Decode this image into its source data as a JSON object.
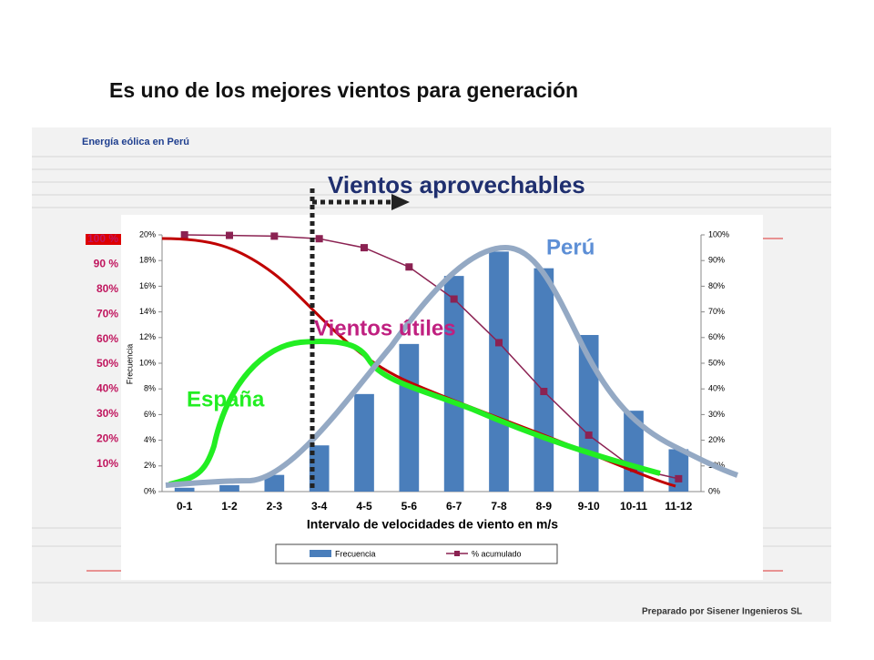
{
  "slide_title": "Es uno de los mejores vientos para generación",
  "side_labels": [
    "100 %",
    "90 %",
    "80%",
    "70%",
    "60%",
    "50%",
    "40%",
    "30%",
    "20%",
    "10%"
  ],
  "credit": "Preparado por Sisener Ingenieros SL",
  "chart_data": {
    "type": "bar",
    "title": "Energía eólica en Perú",
    "annotations": {
      "top": "Vientos aprovechables",
      "middle": "Vientos útiles",
      "spain": "España",
      "peru": "Perú"
    },
    "x_label": "Intervalo de velocidades de viento en m/s",
    "y_label": "Frecuencia",
    "categories": [
      "0-1",
      "1-2",
      "2-3",
      "3-4",
      "4-5",
      "5-6",
      "6-7",
      "7-8",
      "8-9",
      "9-10",
      "10-11",
      "11-12"
    ],
    "series": [
      {
        "name": "Frecuencia",
        "color": "#4a7ebb",
        "values": [
          0.3,
          0.5,
          1.3,
          3.6,
          7.6,
          11.5,
          16.8,
          18.7,
          17.4,
          12.2,
          6.3,
          3.3
        ]
      },
      {
        "name": "% acumulado",
        "color": "#8b2252",
        "axis": "y2",
        "values": [
          100,
          99.8,
          99.5,
          98.5,
          95,
          87.5,
          75,
          58,
          39,
          22,
          9,
          5
        ]
      }
    ],
    "ylim": [
      0,
      20
    ],
    "yticks": [
      {
        "value": 0,
        "label": "0%"
      },
      {
        "value": 2,
        "label": "2%"
      },
      {
        "value": 4,
        "label": "4%"
      },
      {
        "value": 6,
        "label": "6%"
      },
      {
        "value": 8,
        "label": "8%"
      },
      {
        "value": 10,
        "label": "10%"
      },
      {
        "value": 12,
        "label": "12%"
      },
      {
        "value": 14,
        "label": "14%"
      },
      {
        "value": 16,
        "label": "16%"
      },
      {
        "value": 18,
        "label": "18%"
      },
      {
        "value": 20,
        "label": "20%"
      }
    ],
    "y2lim": [
      0,
      100
    ],
    "y2ticks": [
      {
        "value": 0,
        "label": "0%"
      },
      {
        "value": 10,
        "label": "10%"
      },
      {
        "value": 20,
        "label": "20%"
      },
      {
        "value": 30,
        "label": "30%"
      },
      {
        "value": 40,
        "label": "40%"
      },
      {
        "value": 50,
        "label": "50%"
      },
      {
        "value": 60,
        "label": "60%"
      },
      {
        "value": 70,
        "label": "70%"
      },
      {
        "value": 80,
        "label": "80%"
      },
      {
        "value": 90,
        "label": "90%"
      },
      {
        "value": 100,
        "label": "100%"
      }
    ],
    "legend": "bottom"
  }
}
